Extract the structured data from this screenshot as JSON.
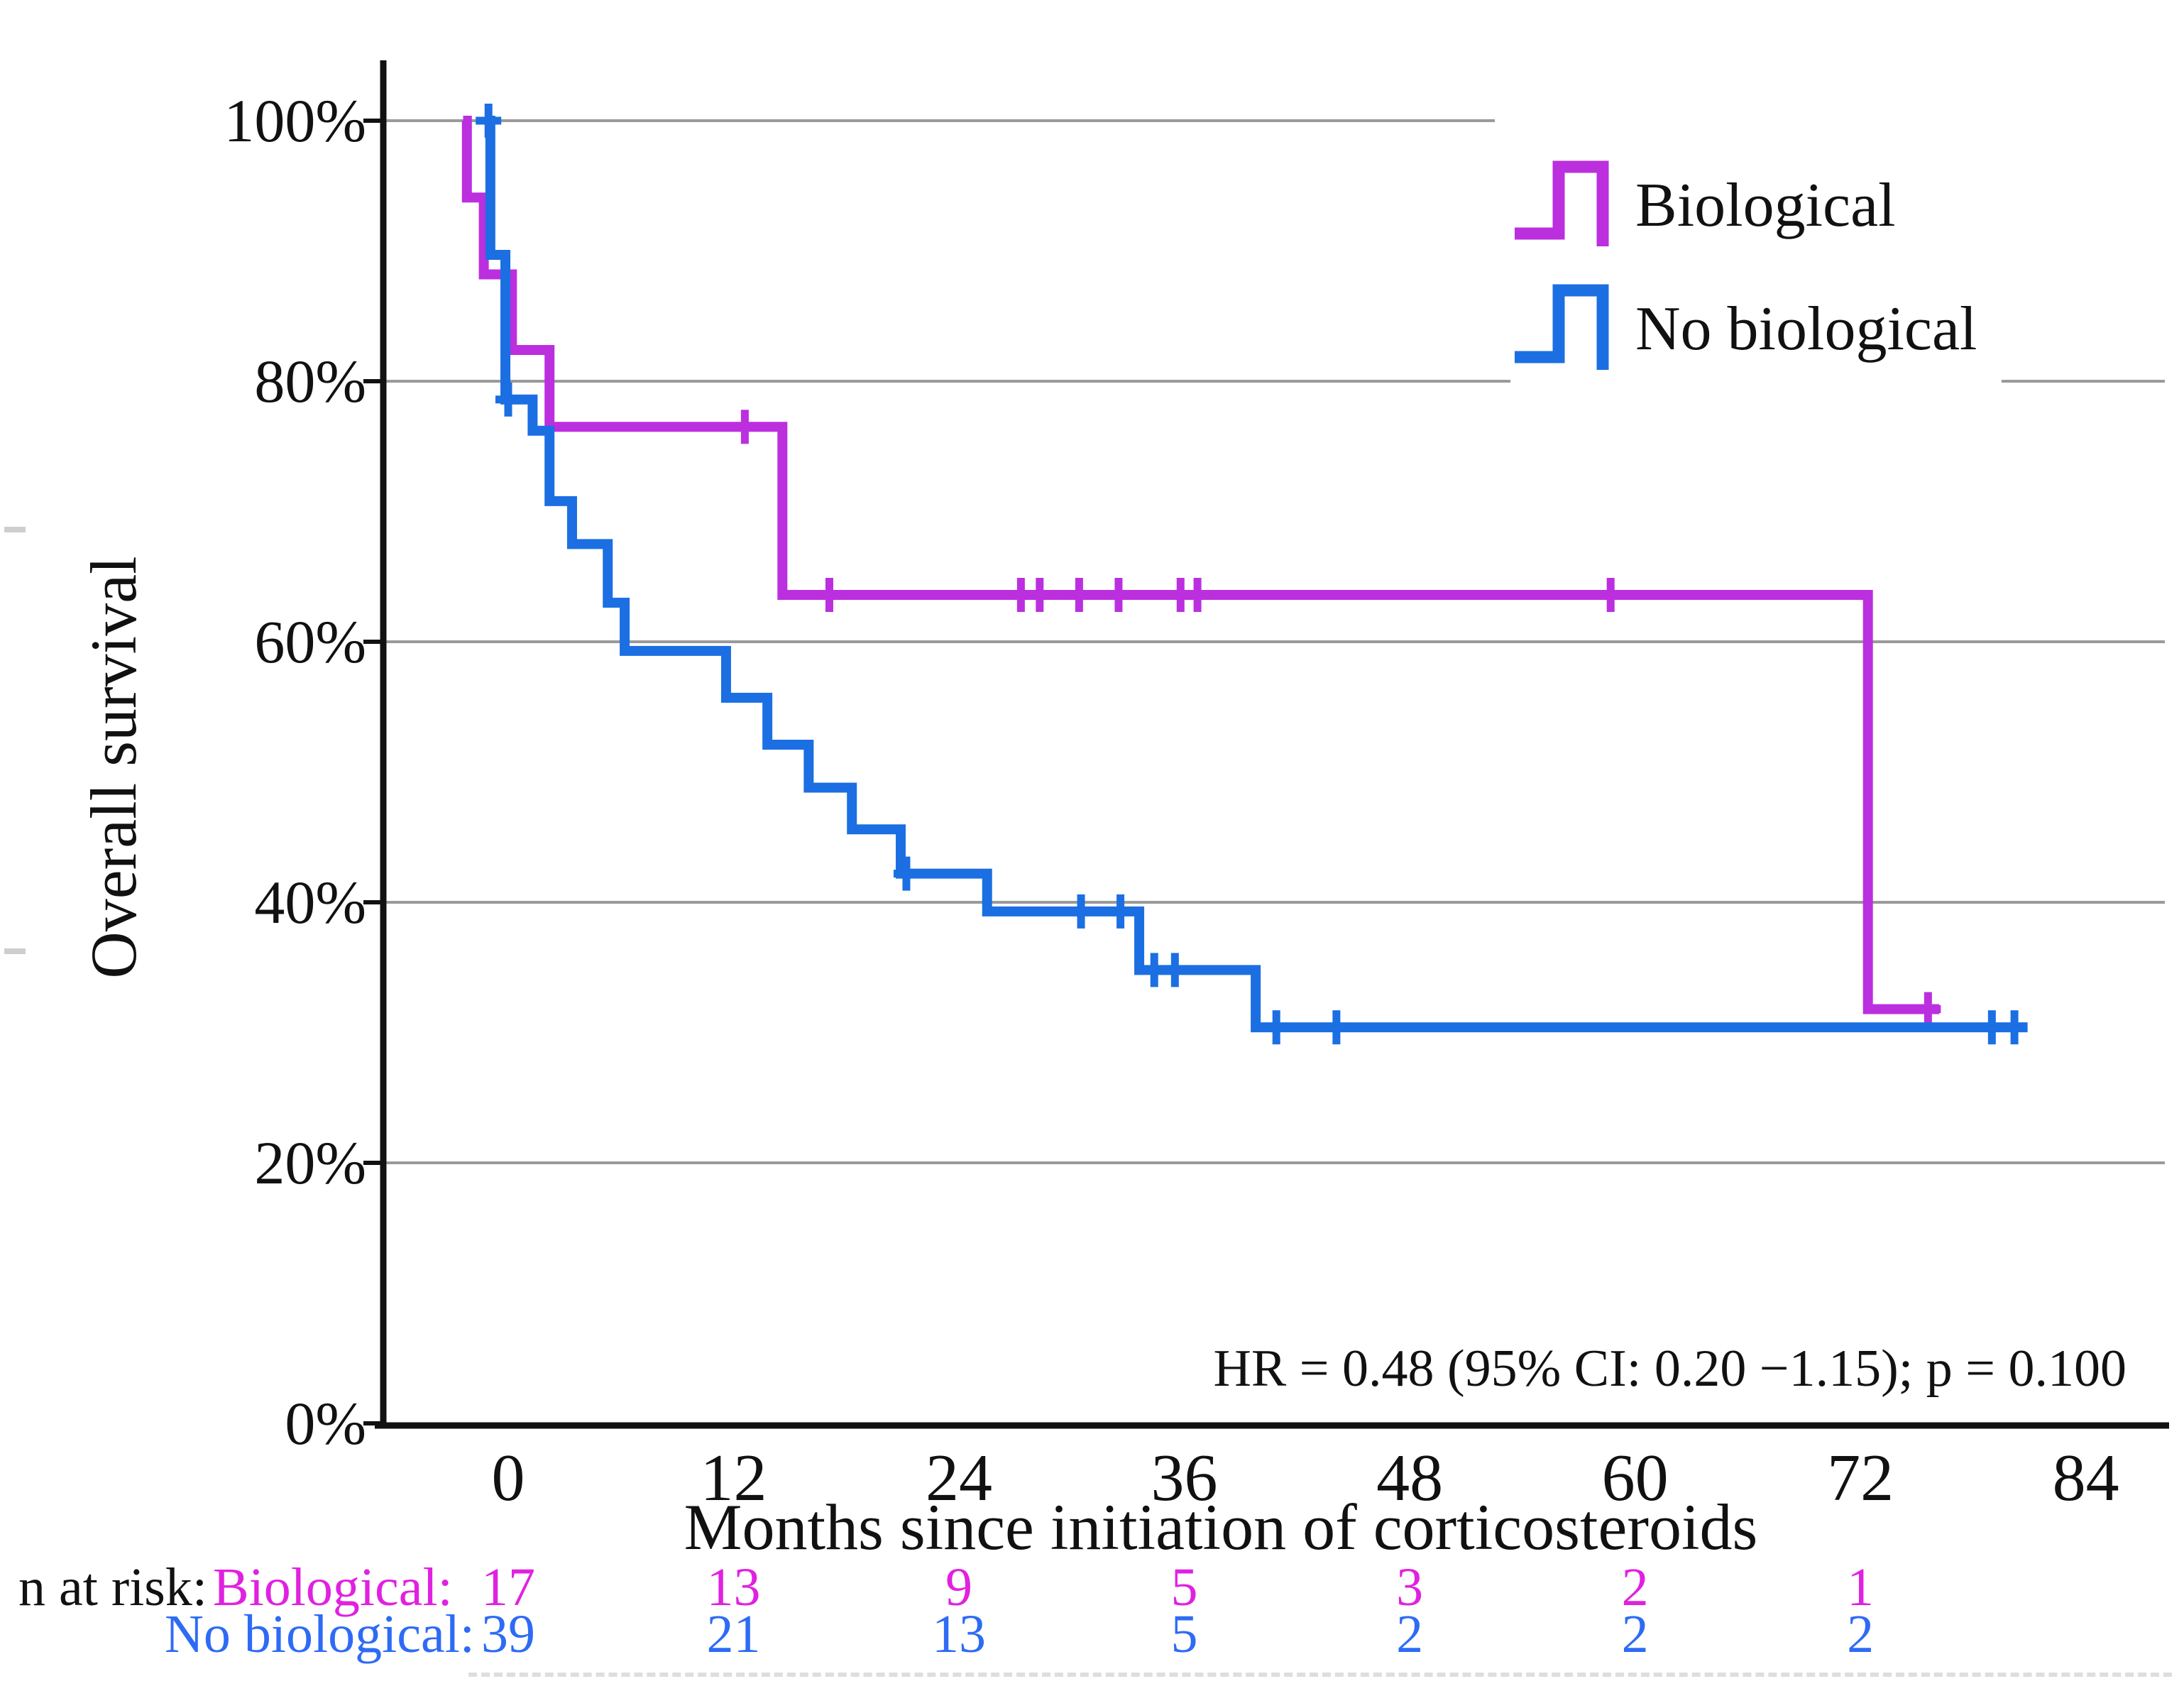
{
  "figure": {
    "background": "#ffffff",
    "colors": {
      "biological": "#bb2fdf",
      "no_biological": "#1b6fe2",
      "biological_text": "#e021e0",
      "no_biological_text": "#2e6bf5",
      "grid": "#9a9a9a",
      "axis": "#111111"
    }
  },
  "chart_data": {
    "type": "line",
    "subtype": "kaplan-meier-step",
    "title": "",
    "xlabel": "Months since initiation of corticosteroids",
    "ylabel": "Overall survival",
    "x_ticks": [
      0,
      12,
      24,
      36,
      48,
      60,
      72,
      84
    ],
    "y_ticks": [
      {
        "value": 100,
        "label": "100%"
      },
      {
        "value": 80,
        "label": "80%"
      },
      {
        "value": 60,
        "label": "60%"
      },
      {
        "value": 40,
        "label": "40%"
      },
      {
        "value": 20,
        "label": "20%"
      },
      {
        "value": 0,
        "label": "0%"
      }
    ],
    "xlim": [
      -6,
      88
    ],
    "ylim": [
      0,
      100
    ],
    "grid": "horizontal",
    "legend_position": "upper-right",
    "annotation": "HR = 0.48 (95% CI: 0.20 −1.15); p = 0.100",
    "series": [
      {
        "name": "Biological",
        "color": "#bb2fdf",
        "steps": [
          [
            -2.4,
            100
          ],
          [
            -2.2,
            94.1
          ],
          [
            -1.3,
            88.2
          ],
          [
            0.2,
            82.4
          ],
          [
            2.2,
            76.5
          ],
          [
            14.6,
            63.6
          ],
          [
            72.4,
            31.8
          ]
        ],
        "end_t": 76.2,
        "censor_times": [
          12.6,
          17.1,
          27.3,
          28.3,
          30.4,
          32.5,
          35.8,
          36.7,
          58.7,
          75.6
        ]
      },
      {
        "name": "No biological",
        "color": "#1b6fe2",
        "steps": [
          [
            -1.2,
            100
          ],
          [
            -0.95,
            89.7
          ],
          [
            -0.15,
            78.6
          ],
          [
            1.3,
            76.2
          ],
          [
            2.2,
            70.8
          ],
          [
            3.4,
            67.5
          ],
          [
            5.3,
            63.0
          ],
          [
            6.2,
            59.3
          ],
          [
            11.6,
            55.7
          ],
          [
            13.8,
            52.1
          ],
          [
            16.0,
            48.8
          ],
          [
            18.3,
            45.6
          ],
          [
            20.9,
            42.2
          ],
          [
            25.5,
            39.3
          ],
          [
            33.6,
            34.8
          ],
          [
            39.8,
            30.4
          ]
        ],
        "end_t": 80.9,
        "censor_times": [
          -1.05,
          0.0,
          21.2,
          30.5,
          32.6,
          34.4,
          35.5,
          40.9,
          44.1,
          79.0,
          80.2
        ]
      }
    ]
  },
  "legend": {
    "items": [
      {
        "label": "Biological"
      },
      {
        "label": "No biological"
      }
    ]
  },
  "annotation": {
    "hr_text": "HR = 0.48 (95% CI: 0.20 −1.15); p = 0.100"
  },
  "axis_titles": {
    "y": "Overall survival",
    "x": "Months since initiation of corticosteroids"
  },
  "risk_table": {
    "prefix": "n at risk:",
    "columns_months": [
      0,
      12,
      24,
      36,
      48,
      60,
      72
    ],
    "rows": [
      {
        "label": "Biological:",
        "values": [
          "17",
          "13",
          "9",
          "5",
          "3",
          "2",
          "1"
        ]
      },
      {
        "label": "No biological:",
        "values": [
          "39",
          "21",
          "13",
          "5",
          "2",
          "2",
          "2"
        ]
      }
    ]
  }
}
